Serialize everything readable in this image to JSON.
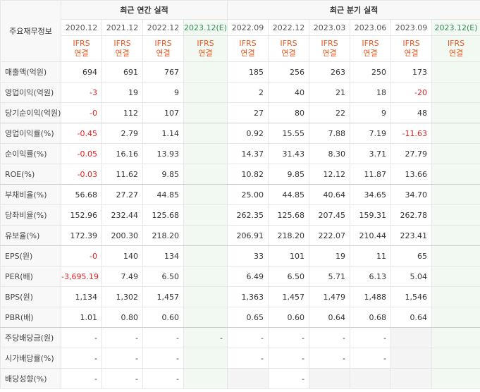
{
  "table": {
    "corner_label": "주요재무정보",
    "groups": {
      "annual": "최근 연간 실적",
      "quarter": "최근 분기 실적"
    },
    "periods": [
      "2020.12",
      "2021.12",
      "2022.12",
      "2023.12(E)",
      "2022.09",
      "2022.12",
      "2023.03",
      "2023.06",
      "2023.09",
      "2023.12(E)"
    ],
    "ifrs_line1": "IFRS",
    "ifrs_line2": "연결",
    "rows": [
      {
        "label": "매출액(억원)",
        "values": [
          "694",
          "691",
          "767",
          "",
          "185",
          "256",
          "263",
          "250",
          "173",
          ""
        ]
      },
      {
        "label": "영업이익(억원)",
        "values": [
          "-3",
          "19",
          "9",
          "",
          "2",
          "40",
          "21",
          "18",
          "-20",
          ""
        ]
      },
      {
        "label": "당기순이익(억원)",
        "values": [
          "-0",
          "112",
          "107",
          "",
          "27",
          "80",
          "22",
          "9",
          "48",
          ""
        ]
      },
      {
        "label": "영업이익률(%)",
        "values": [
          "-0.45",
          "2.79",
          "1.14",
          "",
          "0.92",
          "15.55",
          "7.88",
          "7.19",
          "-11.63",
          ""
        ]
      },
      {
        "label": "순이익률(%)",
        "values": [
          "-0.05",
          "16.16",
          "13.93",
          "",
          "14.37",
          "31.43",
          "8.30",
          "3.71",
          "27.79",
          ""
        ]
      },
      {
        "label": "ROE(%)",
        "values": [
          "-0.03",
          "11.62",
          "9.85",
          "",
          "10.82",
          "9.85",
          "12.12",
          "11.87",
          "13.66",
          ""
        ]
      },
      {
        "label": "부채비율(%)",
        "values": [
          "56.68",
          "27.27",
          "44.85",
          "",
          "25.00",
          "44.85",
          "40.64",
          "34.65",
          "34.70",
          ""
        ]
      },
      {
        "label": "당좌비율(%)",
        "values": [
          "152.96",
          "232.44",
          "125.68",
          "",
          "262.35",
          "125.68",
          "207.45",
          "159.31",
          "262.78",
          ""
        ]
      },
      {
        "label": "유보율(%)",
        "values": [
          "172.39",
          "200.30",
          "218.20",
          "",
          "206.91",
          "218.20",
          "222.07",
          "210.44",
          "223.41",
          ""
        ]
      },
      {
        "label": "EPS(원)",
        "values": [
          "-0",
          "140",
          "134",
          "",
          "33",
          "101",
          "19",
          "11",
          "65",
          ""
        ]
      },
      {
        "label": "PER(배)",
        "values": [
          "-3,695.19",
          "7.49",
          "6.50",
          "",
          "6.49",
          "6.50",
          "5.71",
          "6.13",
          "5.04",
          ""
        ]
      },
      {
        "label": "BPS(원)",
        "values": [
          "1,134",
          "1,302",
          "1,457",
          "",
          "1,363",
          "1,457",
          "1,479",
          "1,488",
          "1,546",
          ""
        ]
      },
      {
        "label": "PBR(배)",
        "values": [
          "1.01",
          "0.80",
          "0.60",
          "",
          "0.65",
          "0.60",
          "0.64",
          "0.68",
          "0.64",
          ""
        ]
      },
      {
        "label": "주당배당금(원)",
        "values": [
          "-",
          "-",
          "-",
          "-",
          "-",
          "-",
          "-",
          "-",
          "",
          ""
        ]
      },
      {
        "label": "시가배당률(%)",
        "values": [
          "-",
          "-",
          "-",
          "",
          "-",
          "-",
          "-",
          "-",
          "",
          ""
        ]
      },
      {
        "label": "배당성향(%)",
        "values": [
          "-",
          "-",
          "-",
          "",
          "",
          "-",
          "",
          "",
          "",
          ""
        ]
      }
    ],
    "colors": {
      "negative": "#e02020",
      "ifrs": "#e85a1f",
      "estimate_bg": "#f2f9f2",
      "empty_bg": "#f4f4f4"
    }
  }
}
